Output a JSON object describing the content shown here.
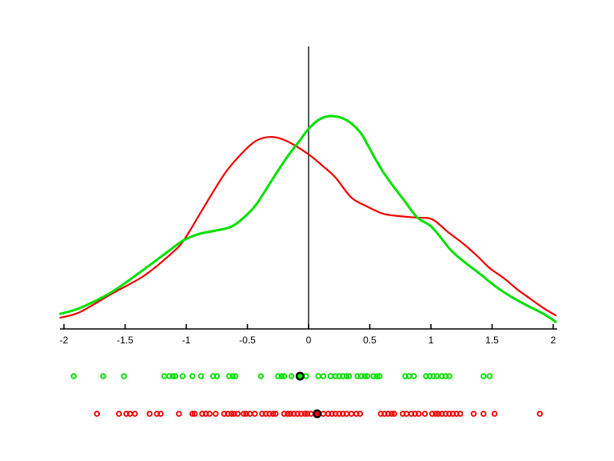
{
  "figure": {
    "background": "#ffffff",
    "title": ""
  },
  "chart_data": {
    "type": "line",
    "subtype": "kernel-density-with-rug",
    "title": "",
    "xlabel": "",
    "ylabel": "",
    "xlim": [
      -2.03,
      2.03
    ],
    "grid": false,
    "legend": null,
    "x_ticks": [
      -2,
      -1.5,
      -1,
      -0.5,
      0,
      0.5,
      1,
      1.5,
      2
    ],
    "x_tick_labels": [
      "-2",
      "-1.5",
      "-1",
      "-0.5",
      "0",
      "0.5",
      "1",
      "1.5",
      "2"
    ],
    "density_units": "normalized (green curve peak = 1.0)",
    "zero_line": {
      "x": 0,
      "color": "#000000"
    },
    "colors": {
      "green": "#00e000",
      "red": "#f00000",
      "axis": "#000000",
      "median_ring": "#000000"
    },
    "series": [
      {
        "name": "red-kde",
        "color": "#f00000",
        "points": [
          [
            -2.03,
            0.053
          ],
          [
            -1.87,
            0.079
          ],
          [
            -1.61,
            0.165
          ],
          [
            -1.35,
            0.248
          ],
          [
            -1.13,
            0.35
          ],
          [
            -1.02,
            0.417
          ],
          [
            -0.86,
            0.568
          ],
          [
            -0.69,
            0.726
          ],
          [
            -0.56,
            0.816
          ],
          [
            -0.43,
            0.883
          ],
          [
            -0.3,
            0.902
          ],
          [
            -0.17,
            0.88
          ],
          [
            0.0,
            0.82
          ],
          [
            0.12,
            0.763
          ],
          [
            0.22,
            0.711
          ],
          [
            0.35,
            0.617
          ],
          [
            0.48,
            0.575
          ],
          [
            0.61,
            0.541
          ],
          [
            0.74,
            0.53
          ],
          [
            0.88,
            0.523
          ],
          [
            1.01,
            0.515
          ],
          [
            1.14,
            0.455
          ],
          [
            1.27,
            0.398
          ],
          [
            1.38,
            0.342
          ],
          [
            1.48,
            0.286
          ],
          [
            1.6,
            0.237
          ],
          [
            1.71,
            0.184
          ],
          [
            1.81,
            0.143
          ],
          [
            1.92,
            0.098
          ],
          [
            2.02,
            0.064
          ]
        ]
      },
      {
        "name": "green-kde",
        "color": "#00e000",
        "points": [
          [
            -2.03,
            0.071
          ],
          [
            -1.87,
            0.098
          ],
          [
            -1.61,
            0.173
          ],
          [
            -1.35,
            0.278
          ],
          [
            -1.13,
            0.372
          ],
          [
            -1.02,
            0.417
          ],
          [
            -0.89,
            0.447
          ],
          [
            -0.76,
            0.462
          ],
          [
            -0.63,
            0.481
          ],
          [
            -0.53,
            0.523
          ],
          [
            -0.43,
            0.583
          ],
          [
            -0.3,
            0.699
          ],
          [
            -0.17,
            0.812
          ],
          [
            -0.07,
            0.887
          ],
          [
            0.0,
            0.94
          ],
          [
            0.09,
            0.985
          ],
          [
            0.19,
            1.0
          ],
          [
            0.31,
            0.981
          ],
          [
            0.42,
            0.925
          ],
          [
            0.48,
            0.868
          ],
          [
            0.54,
            0.805
          ],
          [
            0.61,
            0.737
          ],
          [
            0.68,
            0.68
          ],
          [
            0.78,
            0.605
          ],
          [
            0.89,
            0.523
          ],
          [
            1.01,
            0.477
          ],
          [
            1.16,
            0.372
          ],
          [
            1.27,
            0.316
          ],
          [
            1.4,
            0.259
          ],
          [
            1.53,
            0.199
          ],
          [
            1.66,
            0.15
          ],
          [
            1.79,
            0.109
          ],
          [
            1.92,
            0.071
          ],
          [
            2.02,
            0.034
          ]
        ]
      }
    ],
    "rug": [
      {
        "name": "green-samples",
        "color": "#00e000",
        "row": "top",
        "median_marker": -0.07,
        "values": [
          -1.92,
          -1.68,
          -1.51,
          -1.18,
          -1.14,
          -1.11,
          -1.09,
          -1.03,
          -0.95,
          -0.88,
          -0.78,
          -0.75,
          -0.65,
          -0.62,
          -0.6,
          -0.39,
          -0.25,
          -0.22,
          -0.2,
          -0.14,
          -0.08,
          -0.02,
          0.08,
          0.12,
          0.18,
          0.22,
          0.25,
          0.28,
          0.31,
          0.33,
          0.4,
          0.43,
          0.46,
          0.48,
          0.53,
          0.56,
          0.58,
          0.79,
          0.82,
          0.86,
          0.96,
          0.99,
          1.02,
          1.05,
          1.09,
          1.12,
          1.15,
          1.43,
          1.48
        ]
      },
      {
        "name": "red-samples",
        "color": "#f00000",
        "row": "bottom",
        "median_marker": 0.07,
        "values": [
          -1.73,
          -1.55,
          -1.49,
          -1.46,
          -1.42,
          -1.3,
          -1.24,
          -1.21,
          -1.06,
          -0.95,
          -0.93,
          -0.87,
          -0.84,
          -0.81,
          -0.76,
          -0.69,
          -0.66,
          -0.63,
          -0.61,
          -0.58,
          -0.53,
          -0.51,
          -0.48,
          -0.44,
          -0.38,
          -0.35,
          -0.32,
          -0.29,
          -0.27,
          -0.2,
          -0.17,
          -0.15,
          -0.12,
          -0.09,
          -0.06,
          -0.03,
          -0.01,
          0.02,
          0.07,
          0.12,
          0.16,
          0.19,
          0.22,
          0.25,
          0.28,
          0.31,
          0.35,
          0.39,
          0.42,
          0.59,
          0.62,
          0.65,
          0.68,
          0.7,
          0.77,
          0.8,
          0.84,
          0.87,
          0.9,
          0.95,
          1.01,
          1.04,
          1.06,
          1.09,
          1.12,
          1.15,
          1.18,
          1.21,
          1.24,
          1.35,
          1.43,
          1.52,
          1.89
        ]
      }
    ]
  }
}
